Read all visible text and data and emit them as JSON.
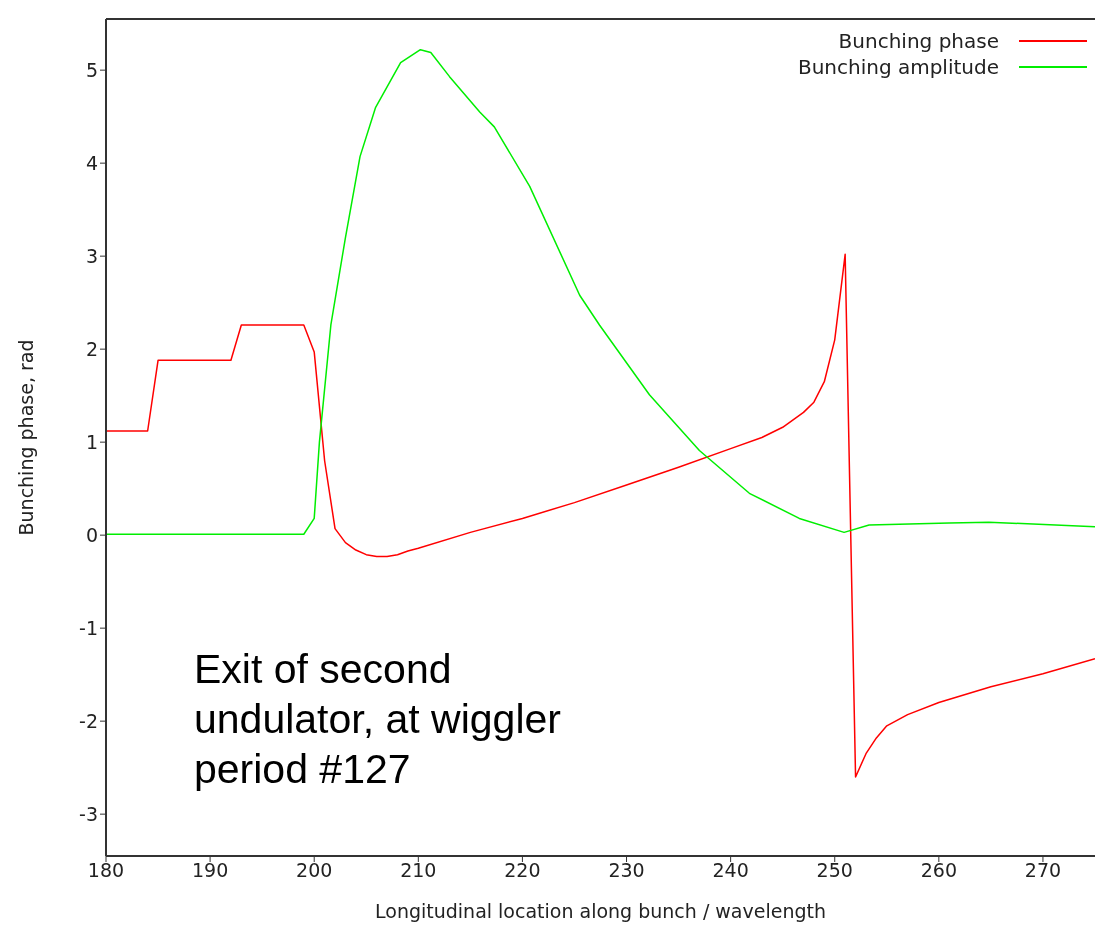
{
  "chart_data": {
    "type": "line",
    "xlabel": "Longitudinal location along bunch / wavelength",
    "ylabel": "Bunching phase, rad",
    "xlim": [
      180,
      275
    ],
    "xticks": [
      180,
      190,
      200,
      210,
      220,
      230,
      240,
      250,
      260,
      270
    ],
    "ylim": [
      -3.45,
      5.55
    ],
    "yticks": [
      -3,
      -2,
      -1,
      0,
      1,
      2,
      3,
      4,
      5
    ],
    "legend": "top right",
    "marker": "none",
    "line_style": "solid",
    "annotations": [
      "Exit of second undulator, at wiggler period #127"
    ],
    "series": [
      {
        "name": "Bunching phase",
        "color": "#ff0000",
        "x": [
          180,
          184,
          185,
          192,
          193,
          199,
          200,
          201,
          202,
          203,
          204,
          205,
          206,
          207,
          208,
          209,
          210,
          215,
          220,
          225,
          230,
          235,
          240,
          243,
          245,
          247,
          248,
          249,
          250,
          251,
          252,
          253,
          254,
          255,
          257,
          260,
          265,
          270,
          275
        ],
        "values": [
          1.12,
          1.12,
          1.88,
          1.88,
          2.26,
          2.26,
          1.97,
          0.8,
          0.07,
          -0.08,
          -0.16,
          -0.21,
          -0.23,
          -0.23,
          -0.21,
          -0.17,
          -0.14,
          0.03,
          0.18,
          0.35,
          0.54,
          0.73,
          0.93,
          1.05,
          1.16,
          1.32,
          1.43,
          1.65,
          2.1,
          3.02,
          -2.6,
          -2.35,
          -2.18,
          -2.05,
          -1.93,
          -1.8,
          -1.63,
          -1.49,
          -1.33
        ]
      },
      {
        "name": "Bunching amplitude",
        "color": "#00ee00",
        "x": [
          180,
          199,
          200,
          200.5,
          201.6,
          203,
          204.4,
          205.9,
          208.3,
          210.2,
          211.2,
          213,
          215.9,
          217.3,
          220.7,
          225.5,
          227.4,
          232.2,
          237,
          241.8,
          246.6,
          250.9,
          253.3,
          261,
          264.8,
          275
        ],
        "values": [
          0.01,
          0.01,
          0.18,
          1.0,
          2.26,
          3.2,
          4.07,
          4.6,
          5.08,
          5.22,
          5.19,
          4.93,
          4.55,
          4.39,
          3.75,
          2.58,
          2.26,
          1.51,
          0.91,
          0.45,
          0.18,
          0.03,
          0.11,
          0.13,
          0.14,
          0.09
        ]
      }
    ]
  }
}
